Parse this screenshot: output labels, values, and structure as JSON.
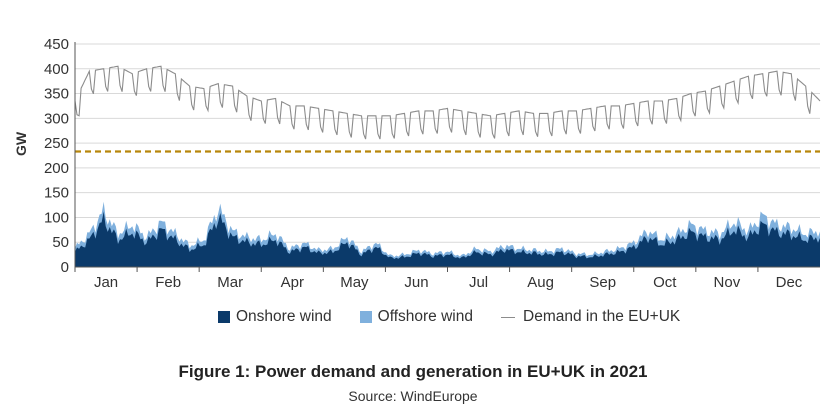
{
  "chart_data": {
    "type": "area",
    "ylabel": "GW",
    "xlabel": "",
    "ylim": [
      0,
      450
    ],
    "yticks": [
      0,
      50,
      100,
      150,
      200,
      250,
      300,
      350,
      400,
      450
    ],
    "months": [
      "Jan",
      "Feb",
      "Mar",
      "Apr",
      "May",
      "Jun",
      "Jul",
      "Aug",
      "Sep",
      "Oct",
      "Nov",
      "Dec"
    ],
    "grid": true,
    "legend_position": "bottom",
    "reference_line": {
      "value": 233,
      "color": "#b8860b",
      "style": "dashed"
    },
    "series": [
      {
        "name": "Onshore wind",
        "color": "#0b3a6a",
        "weekly": [
          30,
          55,
          95,
          55,
          70,
          50,
          75,
          55,
          35,
          45,
          100,
          60,
          50,
          45,
          55,
          30,
          40,
          28,
          30,
          50,
          25,
          40,
          18,
          20,
          28,
          22,
          25,
          18,
          30,
          25,
          35,
          30,
          28,
          25,
          30,
          22,
          20,
          25,
          30,
          40,
          60,
          45,
          55,
          70,
          60,
          55,
          75,
          60,
          85,
          70,
          65,
          55,
          60
        ]
      },
      {
        "name": "Offshore wind",
        "color": "#7fb0dd",
        "weekly": [
          8,
          12,
          18,
          12,
          15,
          10,
          15,
          12,
          8,
          10,
          18,
          12,
          10,
          10,
          12,
          7,
          8,
          6,
          7,
          10,
          6,
          8,
          4,
          5,
          6,
          5,
          6,
          4,
          7,
          6,
          8,
          7,
          6,
          6,
          7,
          5,
          5,
          6,
          7,
          9,
          13,
          10,
          12,
          15,
          13,
          12,
          16,
          13,
          18,
          15,
          14,
          12,
          13
        ]
      },
      {
        "name": "Demand in the EU+UK",
        "color": "#8c8c8c",
        "weekly": [
          330,
          390,
          395,
          400,
          385,
          395,
          400,
          385,
          360,
          355,
          365,
          360,
          340,
          330,
          335,
          320,
          320,
          315,
          310,
          305,
          300,
          300,
          300,
          305,
          310,
          310,
          315,
          310,
          305,
          300,
          305,
          310,
          305,
          305,
          310,
          310,
          315,
          320,
          320,
          325,
          330,
          330,
          335,
          345,
          350,
          360,
          370,
          380,
          385,
          390,
          385,
          360,
          330
        ]
      }
    ]
  },
  "legend": {
    "onshore": "Onshore wind",
    "offshore": "Offshore wind",
    "demand": "Demand in the EU+UK"
  },
  "caption": {
    "title": "Figure 1: Power demand and generation in EU+UK in 2021",
    "source": "Source: WindEurope"
  }
}
